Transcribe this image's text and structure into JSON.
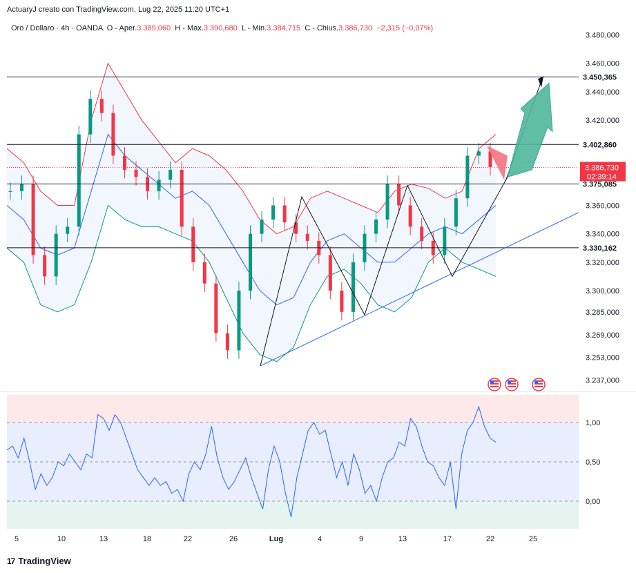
{
  "header": {
    "author_line": "ActuaryJ creato con TradingView.com, Lug 22, 2025 11:20 UTC+1"
  },
  "legend": {
    "symbol": "Oro / Dollaro · 4h · OANDA",
    "open_label": "O - Aper.",
    "open": "3.389,060",
    "high_label": "H - Max.",
    "high": "3.390,680",
    "low_label": "L - Min.",
    "low": "3.384,715",
    "close_label": "C - Chius.",
    "close": "3.386,730",
    "change": "−2,315 (−0,07%)"
  },
  "brand": {
    "name": "TradingView"
  },
  "colors": {
    "up": "#089981",
    "down": "#f23645",
    "band_upper": "#f23645",
    "band_mid": "#2962ff",
    "band_lower": "#089981",
    "trend": "#2962ff",
    "arrow": "#4fb89d",
    "osc": "#2962ff"
  },
  "chart_data": [
    {
      "type": "candlestick",
      "title": "Oro / Dollaro · 4h · OANDA",
      "ylim": [
        3230,
        3490
      ],
      "y_ticks": [
        "3.480,000",
        "3.460,000",
        "3.440,000",
        "3.420,000",
        "3.360,000",
        "3.340,000",
        "3.320,000",
        "3.300,000",
        "3.285,000",
        "3.269,000",
        "3.253,000",
        "3.237,000"
      ],
      "x_ticks": [
        "5",
        "10",
        "13",
        "18",
        "22",
        "26",
        "Lug",
        "4",
        "9",
        "13",
        "17",
        "22",
        "25"
      ],
      "horizontal_levels": [
        {
          "value": 3450.365,
          "label": "3.450,365"
        },
        {
          "value": 3402.86,
          "label": "3.402,860"
        },
        {
          "value": 3375.085,
          "label": "3.375,085"
        },
        {
          "value": 3330.162,
          "label": "3.330,162"
        }
      ],
      "last_price": {
        "value": 3386.73,
        "label": "3.386,730",
        "countdown": "02:39:14"
      },
      "close_path": [
        [
          5,
          3370
        ],
        [
          7,
          3375
        ],
        [
          9,
          3325
        ],
        [
          10,
          3310
        ],
        [
          11,
          3340
        ],
        [
          12,
          3345
        ],
        [
          13,
          3410
        ],
        [
          14,
          3435
        ],
        [
          15,
          3425
        ],
        [
          16,
          3395
        ],
        [
          18,
          3385
        ],
        [
          19,
          3380
        ],
        [
          20,
          3370
        ],
        [
          22,
          3378
        ],
        [
          23,
          3385
        ],
        [
          24,
          3345
        ],
        [
          25,
          3320
        ],
        [
          26,
          3305
        ],
        [
          27,
          3270
        ],
        [
          28,
          3258
        ],
        [
          29,
          3300
        ],
        [
          30,
          3340
        ],
        [
          1,
          3350
        ],
        [
          2,
          3360
        ],
        [
          3,
          3348
        ],
        [
          4,
          3340
        ],
        [
          5,
          3335
        ],
        [
          7,
          3325
        ],
        [
          8,
          3300
        ],
        [
          9,
          3285
        ],
        [
          10,
          3320
        ],
        [
          11,
          3340
        ],
        [
          12,
          3350
        ],
        [
          13,
          3375
        ],
        [
          14,
          3360
        ],
        [
          15,
          3345
        ],
        [
          16,
          3335
        ],
        [
          17,
          3325
        ],
        [
          18,
          3345
        ],
        [
          19,
          3365
        ],
        [
          20,
          3395
        ],
        [
          21,
          3398
        ],
        [
          22,
          3387
        ]
      ],
      "bollinger": {
        "upper": [
          3400,
          3390,
          3370,
          3360,
          3360,
          3420,
          3460,
          3440,
          3420,
          3405,
          3390,
          3400,
          3395,
          3385,
          3370,
          3350,
          3340,
          3345,
          3365,
          3370,
          3365,
          3360,
          3355,
          3370,
          3375,
          3372,
          3365,
          3370,
          3400,
          3410
        ],
        "middle": [
          3360,
          3350,
          3330,
          3325,
          3330,
          3370,
          3410,
          3395,
          3385,
          3375,
          3365,
          3370,
          3360,
          3340,
          3320,
          3300,
          3290,
          3295,
          3320,
          3335,
          3340,
          3330,
          3320,
          3320,
          3330,
          3340,
          3345,
          3340,
          3350,
          3360
        ],
        "lower": [
          3330,
          3320,
          3290,
          3285,
          3290,
          3320,
          3360,
          3350,
          3345,
          3345,
          3340,
          3335,
          3320,
          3295,
          3270,
          3255,
          3250,
          3260,
          3290,
          3310,
          3315,
          3305,
          3290,
          3285,
          3295,
          3320,
          3330,
          3320,
          3315,
          3310
        ]
      },
      "trendline": {
        "from": {
          "date": "Jun 28",
          "value": 3247
        },
        "to": {
          "date": "Jul 25+",
          "value": 3355
        }
      },
      "forecast_arrow": {
        "direction": "up",
        "target": 3450
      }
    },
    {
      "type": "line",
      "ylim": [
        -0.35,
        1.35
      ],
      "y_ticks": [
        "1,00",
        "0,50",
        "0,00"
      ],
      "levels": [
        1.0,
        0.5,
        0.0
      ],
      "values": [
        0.65,
        0.7,
        0.55,
        0.8,
        0.5,
        0.15,
        0.35,
        0.2,
        0.3,
        0.5,
        0.45,
        0.6,
        0.5,
        0.4,
        0.6,
        0.55,
        1.1,
        1.05,
        0.9,
        1.1,
        1.0,
        0.8,
        0.6,
        0.4,
        0.3,
        0.2,
        0.3,
        0.2,
        0.25,
        0.1,
        0.15,
        0.0,
        0.35,
        0.5,
        0.4,
        0.6,
        0.95,
        0.55,
        0.3,
        0.15,
        0.25,
        0.4,
        0.55,
        0.3,
        0.1,
        -0.1,
        0.4,
        0.7,
        0.5,
        0.1,
        -0.2,
        0.3,
        0.6,
        0.9,
        1.0,
        0.85,
        0.9,
        0.6,
        0.3,
        0.5,
        0.2,
        0.6,
        0.4,
        0.1,
        0.2,
        0.0,
        0.3,
        0.5,
        0.55,
        0.75,
        0.7,
        1.05,
        0.95,
        0.7,
        0.5,
        0.45,
        0.3,
        0.2,
        0.5,
        -0.1,
        0.6,
        0.9,
        1.0,
        1.2,
        0.95,
        0.8,
        0.75
      ]
    }
  ]
}
